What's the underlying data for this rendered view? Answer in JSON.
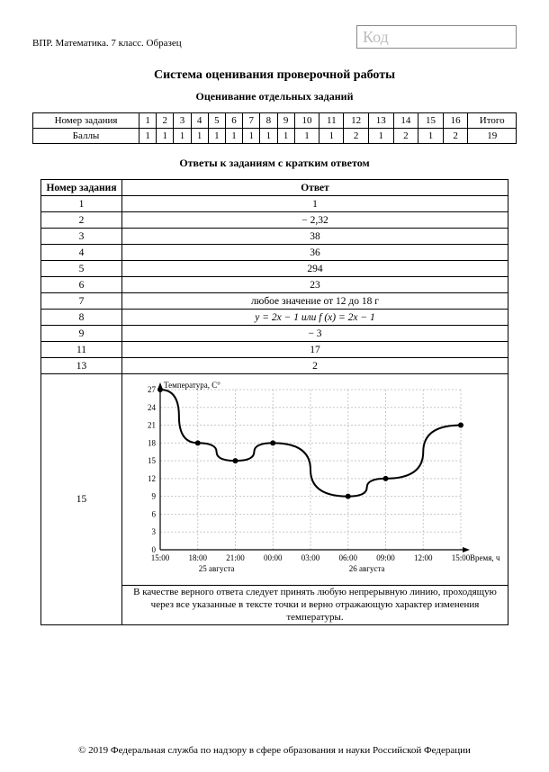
{
  "header": {
    "left": "ВПР. Математика. 7 класс. Образец",
    "code_placeholder": "Код"
  },
  "title": "Система оценивания проверочной работы",
  "subtitle1": "Оценивание отдельных заданий",
  "scores_table": {
    "row_label_1": "Номер задания",
    "row_label_2": "Баллы",
    "numbers": [
      "1",
      "2",
      "3",
      "4",
      "5",
      "6",
      "7",
      "8",
      "9",
      "10",
      "11",
      "12",
      "13",
      "14",
      "15",
      "16"
    ],
    "total_label": "Итого",
    "points": [
      "1",
      "1",
      "1",
      "1",
      "1",
      "1",
      "1",
      "1",
      "1",
      "1",
      "1",
      "2",
      "1",
      "2",
      "1",
      "2"
    ],
    "total": "19"
  },
  "subtitle2": "Ответы к заданиям с кратким ответом",
  "answers_table": {
    "col1": "Номер задания",
    "col2": "Ответ",
    "rows": [
      {
        "n": "1",
        "a": "1"
      },
      {
        "n": "2",
        "a": "− 2,32"
      },
      {
        "n": "3",
        "a": "38"
      },
      {
        "n": "4",
        "a": "36"
      },
      {
        "n": "5",
        "a": "294"
      },
      {
        "n": "6",
        "a": "23"
      },
      {
        "n": "7",
        "a": "любое значение от 12 до 18 г"
      },
      {
        "n": "8",
        "a": "y = 2x − 1 или f (x) = 2x − 1"
      },
      {
        "n": "9",
        "a": "− 3"
      },
      {
        "n": "11",
        "a": "17"
      },
      {
        "n": "13",
        "a": "2"
      }
    ],
    "chart_row_num": "15",
    "chart_caption": "В качестве верного ответа следует принять любую непрерывную линию, проходящую через все указанные в тексте точки и верно отражающую характер изменения температуры."
  },
  "chart": {
    "ylabel": "Температура, С°",
    "xlabel": "Время, ч",
    "y_ticks": [
      0,
      3,
      6,
      9,
      12,
      15,
      18,
      21,
      24,
      27
    ],
    "x_ticks": [
      "15:00",
      "18:00",
      "21:00",
      "00:00",
      "03:00",
      "06:00",
      "09:00",
      "12:00",
      "15:00"
    ],
    "date1": "25 августа",
    "date2": "26 августа",
    "points_x": [
      0,
      1,
      2,
      3,
      5,
      6,
      8
    ],
    "points_y": [
      27,
      18,
      15,
      18,
      9,
      12,
      21
    ],
    "bg": "#ffffff",
    "grid": "#c8c8c8",
    "axis": "#000000",
    "line": "#000000",
    "marker": "#000000",
    "font_size_axis": 9,
    "font_size_label": 9
  },
  "footer": "© 2019 Федеральная служба по надзору в сфере образования и науки Российской Федерации"
}
